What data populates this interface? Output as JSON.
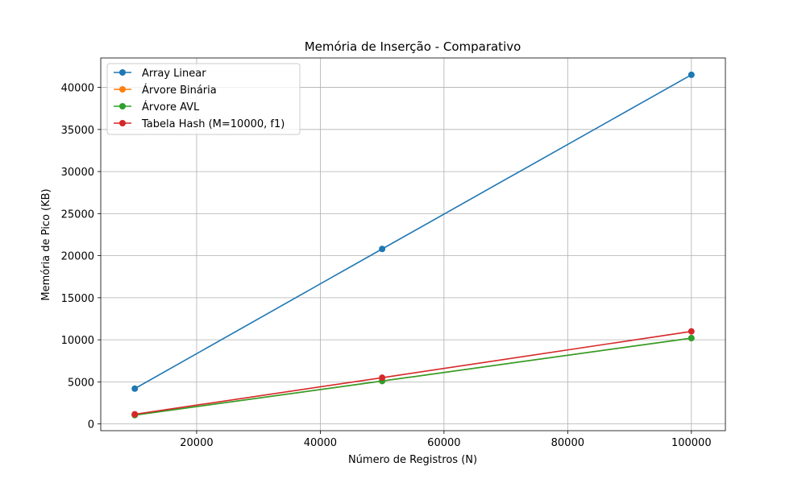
{
  "chart_data": {
    "type": "line",
    "title": "Memória de Inserção - Comparativo",
    "xlabel": "Número de Registros (N)",
    "ylabel": "Memória de Pico (KB)",
    "x": [
      10000,
      50000,
      100000
    ],
    "xlim": [
      4500,
      105500
    ],
    "ylim": [
      -800,
      43500
    ],
    "xticks": [
      20000,
      40000,
      60000,
      80000,
      100000
    ],
    "yticks": [
      0,
      5000,
      10000,
      15000,
      20000,
      25000,
      30000,
      35000,
      40000
    ],
    "grid": true,
    "legend_position": "top-left",
    "series": [
      {
        "name": "Array Linear",
        "color": "#1f77b4",
        "marker": "circle",
        "values": [
          4200,
          20800,
          41500
        ]
      },
      {
        "name": "Árvore Binária",
        "color": "#ff7f0e",
        "marker": "circle",
        "values": [
          1050,
          5100,
          10200
        ]
      },
      {
        "name": "Árvore AVL",
        "color": "#2ca02c",
        "marker": "circle",
        "values": [
          1050,
          5100,
          10200
        ]
      },
      {
        "name": "Tabela Hash (M=10000, f1)",
        "color": "#d62728",
        "marker": "circle",
        "values": [
          1150,
          5500,
          11000
        ]
      }
    ]
  }
}
